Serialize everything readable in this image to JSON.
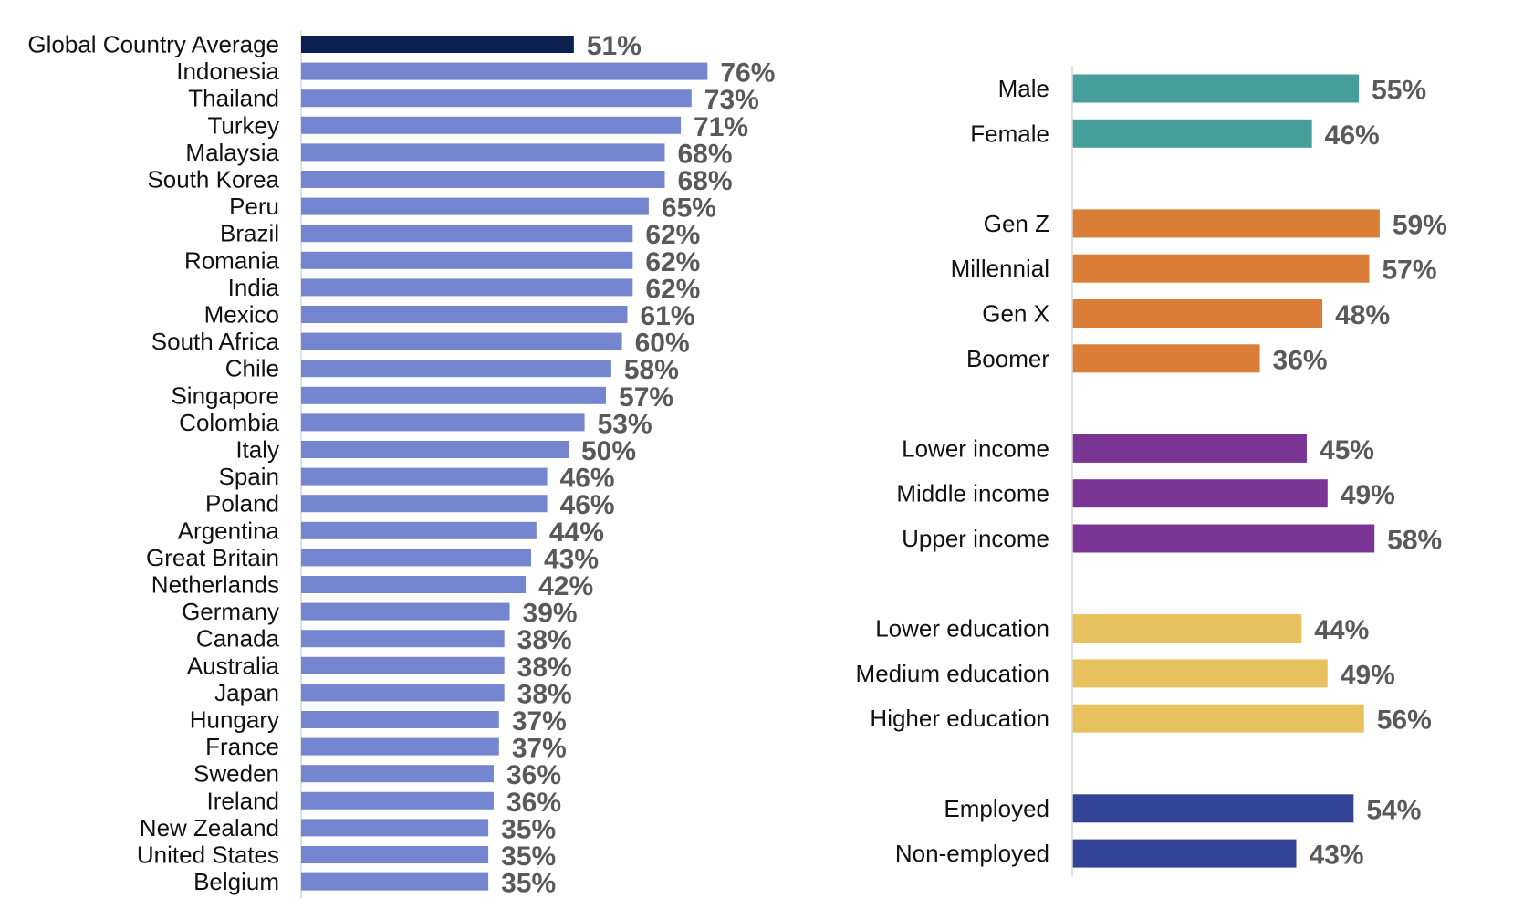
{
  "chart_data": [
    {
      "type": "bar",
      "orientation": "horizontal",
      "categories": [
        "Global Country Average",
        "Indonesia",
        "Thailand",
        "Turkey",
        "Malaysia",
        "South Korea",
        "Peru",
        "Brazil",
        "Romania",
        "India",
        "Mexico",
        "South Africa",
        "Chile",
        "Singapore",
        "Colombia",
        "Italy",
        "Spain",
        "Poland",
        "Argentina",
        "Great Britain",
        "Netherlands",
        "Germany",
        "Canada",
        "Australia",
        "Japan",
        "Hungary",
        "France",
        "Sweden",
        "Ireland",
        "New Zealand",
        "United States",
        "Belgium"
      ],
      "values": [
        51,
        76,
        73,
        71,
        68,
        68,
        65,
        62,
        62,
        62,
        61,
        60,
        58,
        57,
        53,
        50,
        46,
        46,
        44,
        43,
        42,
        39,
        38,
        38,
        38,
        37,
        37,
        36,
        36,
        35,
        35,
        35
      ],
      "value_labels": [
        "51%",
        "76%",
        "73%",
        "71%",
        "68%",
        "68%",
        "65%",
        "62%",
        "62%",
        "62%",
        "61%",
        "60%",
        "58%",
        "57%",
        "53%",
        "50%",
        "46%",
        "46%",
        "44%",
        "43%",
        "42%",
        "39%",
        "38%",
        "38%",
        "38%",
        "37%",
        "37%",
        "36%",
        "36%",
        "35%",
        "35%",
        "35%"
      ],
      "colors": {
        "highlight": "#0d2150",
        "default": "#7586d1"
      },
      "xlim": [
        0,
        100
      ]
    },
    {
      "type": "bar",
      "orientation": "horizontal",
      "groups": [
        {
          "color": "#469e9b",
          "items": [
            {
              "label": "Male",
              "value": 55,
              "value_label": "55%"
            },
            {
              "label": "Female",
              "value": 46,
              "value_label": "46%"
            }
          ]
        },
        {
          "color": "#d97d37",
          "items": [
            {
              "label": "Gen Z",
              "value": 59,
              "value_label": "59%"
            },
            {
              "label": "Millennial",
              "value": 57,
              "value_label": "57%"
            },
            {
              "label": "Gen X",
              "value": 48,
              "value_label": "48%"
            },
            {
              "label": "Boomer",
              "value": 36,
              "value_label": "36%"
            }
          ]
        },
        {
          "color": "#7a3494",
          "items": [
            {
              "label": "Lower income",
              "value": 45,
              "value_label": "45%"
            },
            {
              "label": "Middle income",
              "value": 49,
              "value_label": "49%"
            },
            {
              "label": "Upper income",
              "value": 58,
              "value_label": "58%"
            }
          ]
        },
        {
          "color": "#e8c15f",
          "items": [
            {
              "label": "Lower education",
              "value": 44,
              "value_label": "44%"
            },
            {
              "label": "Medium education",
              "value": 49,
              "value_label": "49%"
            },
            {
              "label": "Higher education",
              "value": 56,
              "value_label": "56%"
            }
          ]
        },
        {
          "color": "#334496",
          "items": [
            {
              "label": "Employed",
              "value": 54,
              "value_label": "54%"
            },
            {
              "label": "Non-employed",
              "value": 43,
              "value_label": "43%"
            }
          ]
        }
      ],
      "xlim": [
        0,
        100
      ]
    }
  ]
}
